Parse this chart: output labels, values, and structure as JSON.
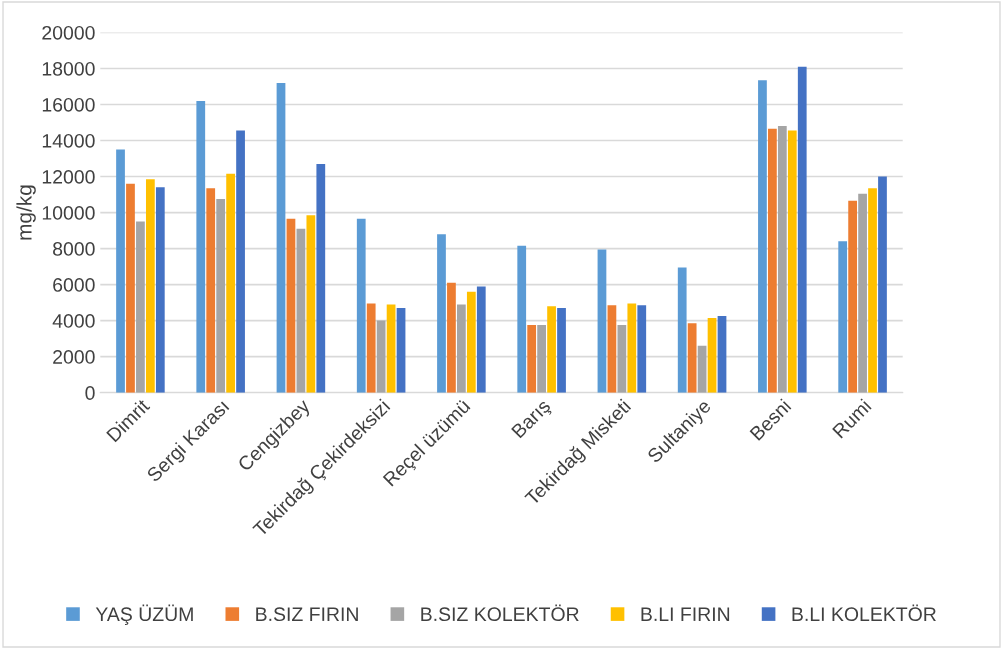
{
  "chart_data": {
    "type": "bar",
    "ylabel": "mg/kg",
    "categories": [
      "Dimrit",
      "Sergi Karası",
      "Cengizbey",
      "Tekirdağ Çekirdeksizi",
      "Reçel üzümü",
      "Barış",
      "Tekirdağ Misketi",
      "Sultaniye",
      "Besni",
      "Rumi"
    ],
    "series": [
      {
        "name": "YAŞ ÜZÜM",
        "color": "#5b9bd5",
        "values": [
          13500,
          16200,
          17200,
          9650,
          8800,
          8150,
          7950,
          6950,
          17350,
          8400
        ]
      },
      {
        "name": "B.SIZ FIRIN",
        "color": "#ed7d31",
        "values": [
          11600,
          11350,
          9650,
          4950,
          6100,
          3750,
          4850,
          3850,
          14650,
          10650
        ]
      },
      {
        "name": "B.SIZ KOLEKTÖR",
        "color": "#a5a5a5",
        "values": [
          9500,
          10750,
          9100,
          4000,
          4900,
          3750,
          3750,
          2600,
          14800,
          11050
        ]
      },
      {
        "name": "B.LI FIRIN",
        "color": "#ffc000",
        "values": [
          11850,
          12150,
          9850,
          4900,
          5600,
          4800,
          4950,
          4150,
          14550,
          11350
        ]
      },
      {
        "name": "B.LI KOLEKTÖR",
        "color": "#4472c4",
        "values": [
          11400,
          14550,
          12700,
          4700,
          5900,
          4700,
          4850,
          4250,
          18100,
          12000
        ]
      }
    ],
    "ylim": [
      0,
      20000
    ],
    "yticks": [
      0,
      2000,
      4000,
      6000,
      8000,
      10000,
      12000,
      14000,
      16000,
      18000,
      20000
    ],
    "grid": "y",
    "legend": "bottom"
  }
}
